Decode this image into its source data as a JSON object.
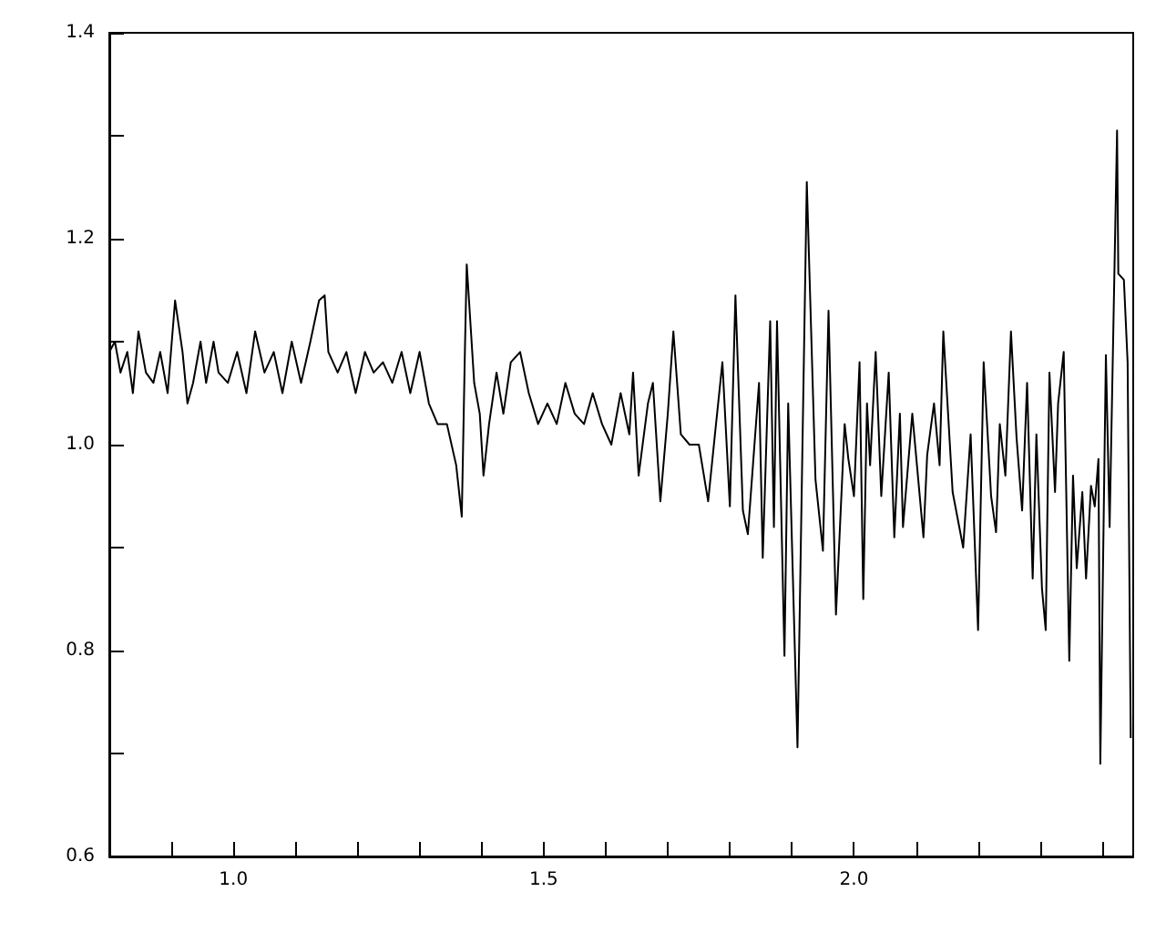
{
  "chart_data": {
    "type": "line",
    "marker": "none",
    "grid": false,
    "xlim": [
      0.8,
      2.45
    ],
    "xticks": [
      {
        "value": 0.9,
        "label": null
      },
      {
        "value": 1,
        "label": "1.0"
      },
      {
        "value": 1.1,
        "label": null
      },
      {
        "value": 1.2,
        "label": null
      },
      {
        "value": 1.3,
        "label": null
      },
      {
        "value": 1.4,
        "label": null
      },
      {
        "value": 1.5,
        "label": "1.5"
      },
      {
        "value": 1.6,
        "label": null
      },
      {
        "value": 1.7,
        "label": null
      },
      {
        "value": 1.8,
        "label": null
      },
      {
        "value": 1.9,
        "label": null
      },
      {
        "value": 2,
        "label": "2.0"
      },
      {
        "value": 2.1,
        "label": null
      },
      {
        "value": 2.2,
        "label": null
      },
      {
        "value": 2.3,
        "label": null
      },
      {
        "value": 2.4,
        "label": null
      }
    ],
    "ylim": [
      0.6,
      1.4
    ],
    "yticks": [
      {
        "value": 0.6,
        "label": "0.6"
      },
      {
        "value": 0.7,
        "label": null
      },
      {
        "value": 0.8,
        "label": "0.8"
      },
      {
        "value": 0.9,
        "label": null
      },
      {
        "value": 1,
        "label": "1.0"
      },
      {
        "value": 1.1,
        "label": null
      },
      {
        "value": 1.2,
        "label": "1.2"
      },
      {
        "value": 1.3,
        "label": null
      },
      {
        "value": 1.4,
        "label": "1.4"
      }
    ],
    "series": [
      {
        "color": "#000000",
        "x": [
          0.8,
          0.809,
          0.818,
          0.829,
          0.838,
          0.847,
          0.859,
          0.871,
          0.882,
          0.894,
          0.906,
          0.918,
          0.926,
          0.935,
          0.947,
          0.956,
          0.968,
          0.976,
          0.991,
          1.006,
          1.021,
          1.035,
          1.05,
          1.065,
          1.079,
          1.094,
          1.109,
          1.124,
          1.138,
          1.147,
          1.153,
          1.168,
          1.182,
          1.197,
          1.212,
          1.226,
          1.241,
          1.256,
          1.271,
          1.285,
          1.3,
          1.315,
          1.329,
          1.344,
          1.359,
          1.368,
          1.373,
          1.376,
          1.388,
          1.397,
          1.403,
          1.412,
          1.424,
          1.435,
          1.447,
          1.462,
          1.476,
          1.491,
          1.506,
          1.521,
          1.535,
          1.55,
          1.565,
          1.579,
          1.594,
          1.609,
          1.624,
          1.638,
          1.644,
          1.653,
          1.668,
          1.676,
          1.688,
          1.7,
          1.709,
          1.721,
          1.735,
          1.75,
          1.765,
          1.776,
          1.788,
          1.8,
          1.809,
          1.821,
          1.829,
          1.847,
          1.853,
          1.865,
          1.871,
          1.876,
          1.888,
          1.894,
          1.909,
          1.924,
          1.938,
          1.95,
          1.959,
          1.971,
          1.985,
          1.991,
          2.0,
          2.009,
          2.015,
          2.021,
          2.026,
          2.035,
          2.044,
          2.056,
          2.065,
          2.074,
          2.079,
          2.094,
          2.112,
          2.118,
          2.129,
          2.138,
          2.144,
          2.159,
          2.176,
          2.188,
          2.2,
          2.209,
          2.221,
          2.229,
          2.235,
          2.244,
          2.253,
          2.262,
          2.271,
          2.279,
          2.288,
          2.294,
          2.303,
          2.309,
          2.315,
          2.324,
          2.329,
          2.338,
          2.347,
          2.353,
          2.359,
          2.368,
          2.374,
          2.382,
          2.388,
          2.394,
          2.397,
          2.406,
          2.412,
          2.424,
          2.426,
          2.435,
          2.441,
          2.446
        ],
        "values": [
          1.09,
          1.1,
          1.07,
          1.09,
          1.05,
          1.11,
          1.07,
          1.06,
          1.09,
          1.05,
          1.14,
          1.09,
          1.04,
          1.06,
          1.1,
          1.06,
          1.1,
          1.07,
          1.06,
          1.09,
          1.05,
          1.11,
          1.07,
          1.09,
          1.05,
          1.1,
          1.06,
          1.1,
          1.14,
          1.145,
          1.09,
          1.07,
          1.09,
          1.05,
          1.09,
          1.07,
          1.08,
          1.06,
          1.09,
          1.05,
          1.09,
          1.04,
          1.02,
          1.02,
          0.98,
          0.93,
          1.09,
          1.175,
          1.06,
          1.03,
          0.97,
          1.02,
          1.07,
          1.03,
          1.08,
          1.09,
          1.05,
          1.02,
          1.04,
          1.02,
          1.06,
          1.03,
          1.02,
          1.05,
          1.02,
          1.0,
          1.05,
          1.01,
          1.07,
          0.97,
          1.04,
          1.06,
          0.945,
          1.03,
          1.11,
          1.01,
          1.0,
          1.0,
          0.945,
          1.01,
          1.08,
          0.94,
          1.145,
          0.936,
          0.913,
          1.06,
          0.89,
          1.12,
          0.92,
          1.12,
          0.795,
          1.04,
          0.706,
          1.255,
          0.966,
          0.897,
          1.13,
          0.835,
          1.02,
          0.986,
          0.95,
          1.08,
          0.85,
          1.04,
          0.98,
          1.09,
          0.95,
          1.07,
          0.91,
          1.03,
          0.92,
          1.03,
          0.91,
          0.99,
          1.04,
          0.98,
          1.11,
          0.954,
          0.9,
          1.01,
          0.82,
          1.08,
          0.95,
          0.915,
          1.02,
          0.97,
          1.11,
          1.007,
          0.936,
          1.06,
          0.87,
          1.01,
          0.86,
          0.82,
          1.07,
          0.954,
          1.04,
          1.09,
          0.79,
          0.97,
          0.88,
          0.954,
          0.87,
          0.96,
          0.94,
          0.986,
          0.69,
          1.087,
          0.92,
          1.305,
          1.166,
          1.16,
          1.08,
          0.715
        ]
      }
    ]
  }
}
